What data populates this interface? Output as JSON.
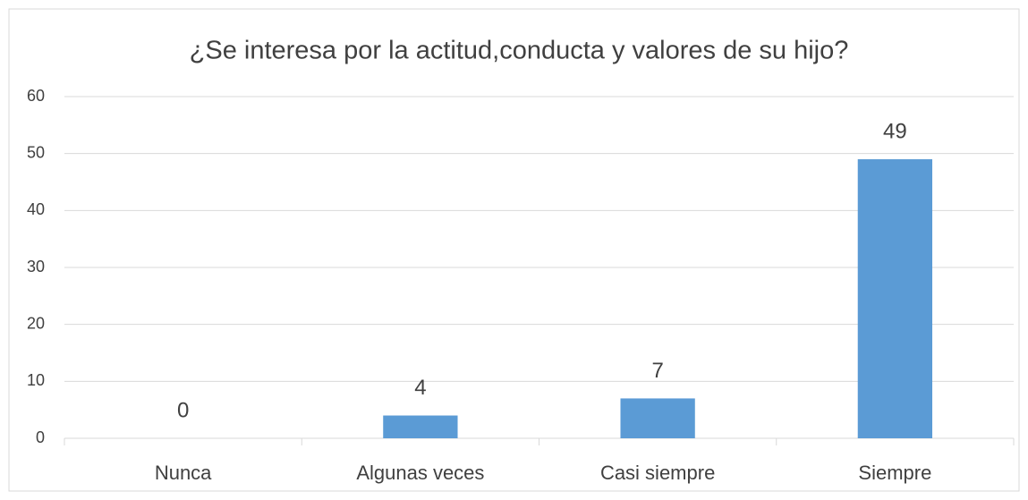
{
  "chart_data": {
    "type": "bar",
    "title": "¿Se interesa por la actitud,conducta y valores de su hijo?",
    "categories": [
      "Nunca",
      "Algunas veces",
      "Casi siempre",
      "Siempre"
    ],
    "values": [
      0,
      4,
      7,
      49
    ],
    "color": "#5b9bd5",
    "ylim": [
      0,
      60
    ],
    "yticks": [
      0,
      10,
      20,
      30,
      40,
      50,
      60
    ],
    "grid": true,
    "data_labels": true
  }
}
